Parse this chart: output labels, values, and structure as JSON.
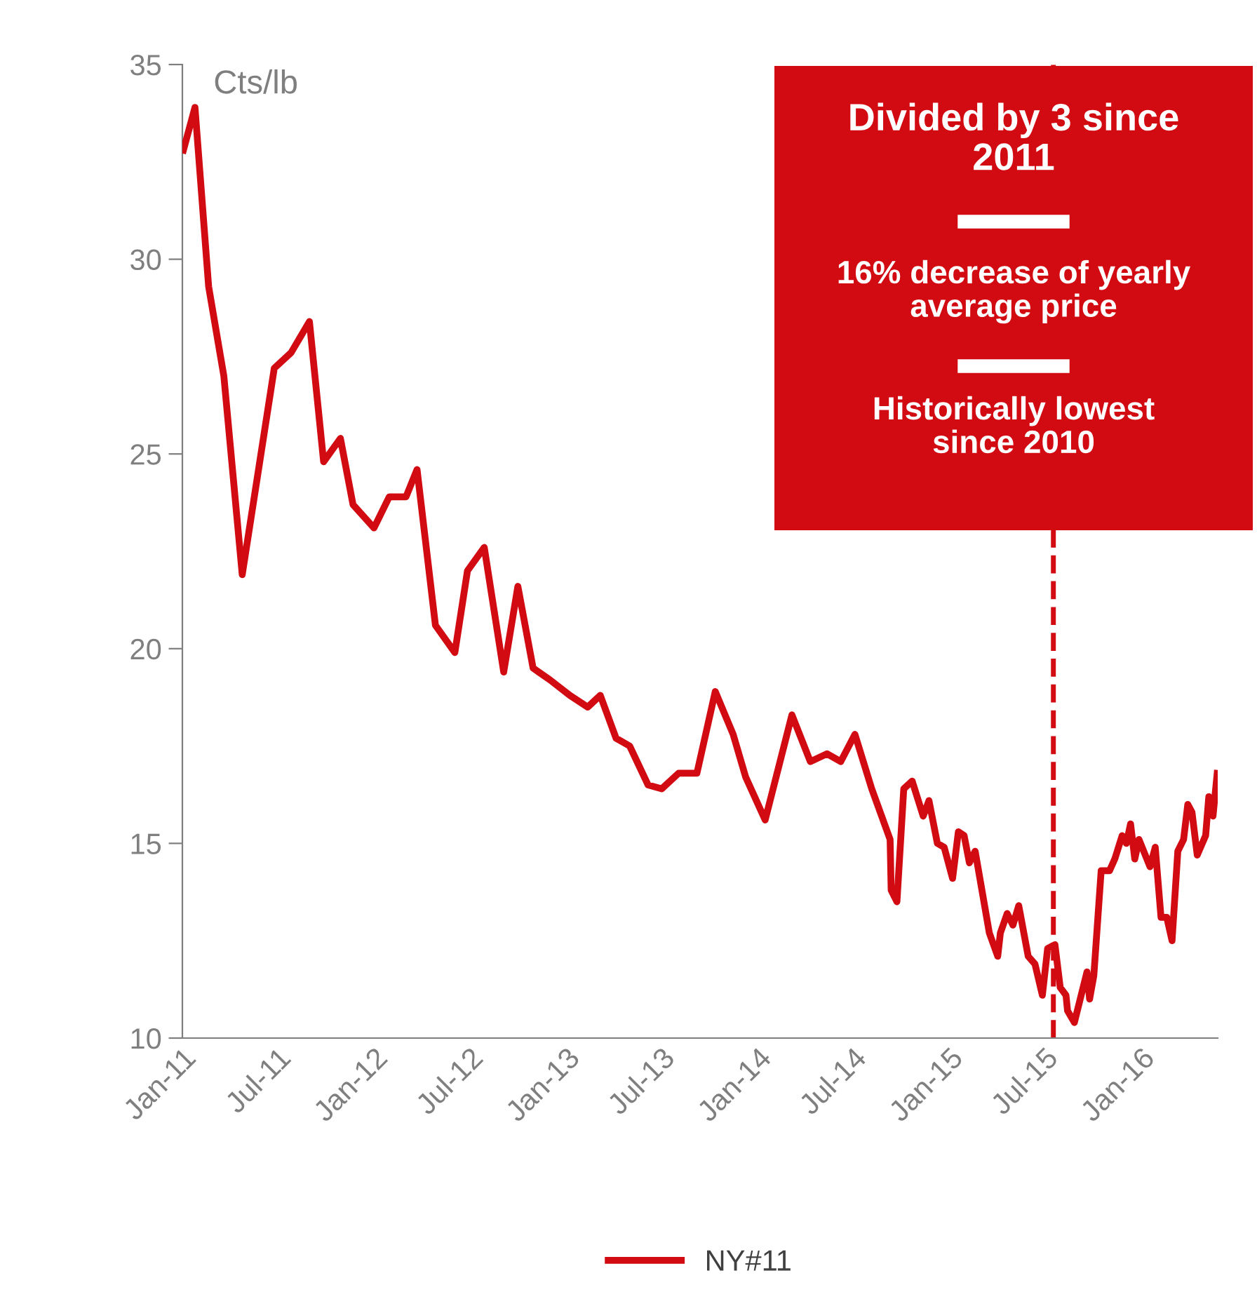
{
  "chart_data": {
    "type": "line",
    "ylabel": "Cts/lb",
    "ylim": [
      10,
      35
    ],
    "yticks": [
      10,
      15,
      20,
      25,
      30,
      35
    ],
    "xlim": [
      "2011-01-01",
      "2016-05-26"
    ],
    "xticks": [
      {
        "value": "2011-01-01",
        "label": "Jan-11"
      },
      {
        "value": "2011-07-01",
        "label": "Jul-11"
      },
      {
        "value": "2012-01-01",
        "label": "Jan-12"
      },
      {
        "value": "2012-07-01",
        "label": "Jul-12"
      },
      {
        "value": "2013-01-01",
        "label": "Jan-13"
      },
      {
        "value": "2013-07-01",
        "label": "Jul-13"
      },
      {
        "value": "2014-01-01",
        "label": "Jan-14"
      },
      {
        "value": "2014-07-01",
        "label": "Jul-14"
      },
      {
        "value": "2015-01-01",
        "label": "Jan-15"
      },
      {
        "value": "2015-07-01",
        "label": "Jul-15"
      },
      {
        "value": "2016-01-01",
        "label": "Jan-16"
      }
    ],
    "grid": false,
    "legend": "bottom",
    "marker": "none",
    "line_style": "solid",
    "ref_lines": [
      {
        "axis": "x",
        "value": "2015-07-18",
        "color": "#d20a11",
        "line_style": "dashed"
      }
    ],
    "annotations": [
      "Divided by 3 since 2011",
      "16% decrease of yearly average price",
      "Historically lowest since 2010"
    ],
    "series": [
      {
        "name": "NY#11",
        "color": "#d20a11",
        "x": [
          "2011-01-03",
          "2011-01-25",
          "2011-02-20",
          "2011-03-21",
          "2011-04-25",
          "2011-06-25",
          "2011-07-27",
          "2011-08-31",
          "2011-09-27",
          "2011-10-29",
          "2011-11-22",
          "2012-01-01",
          "2012-01-30",
          "2012-03-02",
          "2012-03-23",
          "2012-04-27",
          "2012-06-03",
          "2012-06-27",
          "2012-07-29",
          "2012-09-04",
          "2012-10-01",
          "2012-10-30",
          "2012-12-01",
          "2013-01-08",
          "2013-02-11",
          "2013-03-07",
          "2013-04-06",
          "2013-05-02",
          "2013-06-06",
          "2013-07-02",
          "2013-08-03",
          "2013-09-07",
          "2013-10-12",
          "2013-11-15",
          "2013-12-09",
          "2014-01-15",
          "2014-03-07",
          "2014-04-11",
          "2014-05-13",
          "2014-06-08",
          "2014-07-05",
          "2014-08-06",
          "2014-09-10",
          "2014-09-12",
          "2014-09-23",
          "2014-10-06",
          "2014-10-22",
          "2014-11-12",
          "2014-11-23",
          "2014-12-09",
          "2014-12-22",
          "2015-01-07",
          "2015-01-18",
          "2015-01-29",
          "2015-02-08",
          "2015-02-19",
          "2015-03-18",
          "2015-04-03",
          "2015-04-08",
          "2015-04-21",
          "2015-05-02",
          "2015-05-13",
          "2015-05-31",
          "2015-06-13",
          "2015-06-27",
          "2015-07-07",
          "2015-07-21",
          "2015-07-31",
          "2015-08-11",
          "2015-08-14",
          "2015-08-27",
          "2015-09-20",
          "2015-09-25",
          "2015-10-03",
          "2015-10-17",
          "2015-11-02",
          "2015-11-12",
          "2015-11-26",
          "2015-12-04",
          "2015-12-12",
          "2015-12-20",
          "2015-12-28",
          "2016-01-18",
          "2016-01-28",
          "2016-02-08",
          "2016-02-19",
          "2016-02-29",
          "2016-03-11",
          "2016-03-22",
          "2016-03-30",
          "2016-04-07",
          "2016-04-17",
          "2016-05-03",
          "2016-05-09",
          "2016-05-17",
          "2016-05-25"
        ],
        "values": [
          32.8,
          33.9,
          29.3,
          27.0,
          21.9,
          27.2,
          27.6,
          28.4,
          24.8,
          25.4,
          23.7,
          23.1,
          23.9,
          23.9,
          24.6,
          20.6,
          19.9,
          22.0,
          22.6,
          19.4,
          21.6,
          19.5,
          19.2,
          18.8,
          18.5,
          18.8,
          17.7,
          17.5,
          16.5,
          16.4,
          16.8,
          16.8,
          18.9,
          17.8,
          16.7,
          15.6,
          18.3,
          17.1,
          17.3,
          17.1,
          17.8,
          16.4,
          15.1,
          13.8,
          13.5,
          16.4,
          16.6,
          15.7,
          16.1,
          15.0,
          14.9,
          14.1,
          15.3,
          15.2,
          14.5,
          14.8,
          12.7,
          12.1,
          12.7,
          13.2,
          12.9,
          13.4,
          12.1,
          11.9,
          11.1,
          12.3,
          12.4,
          11.3,
          11.1,
          10.7,
          10.4,
          11.7,
          11.0,
          11.6,
          14.3,
          14.3,
          14.6,
          15.2,
          15.0,
          15.5,
          14.6,
          15.1,
          14.4,
          14.9,
          13.1,
          13.1,
          12.5,
          14.8,
          15.1,
          16.0,
          15.8,
          14.7,
          15.2,
          16.2,
          15.7,
          16.8
        ]
      }
    ]
  }
}
